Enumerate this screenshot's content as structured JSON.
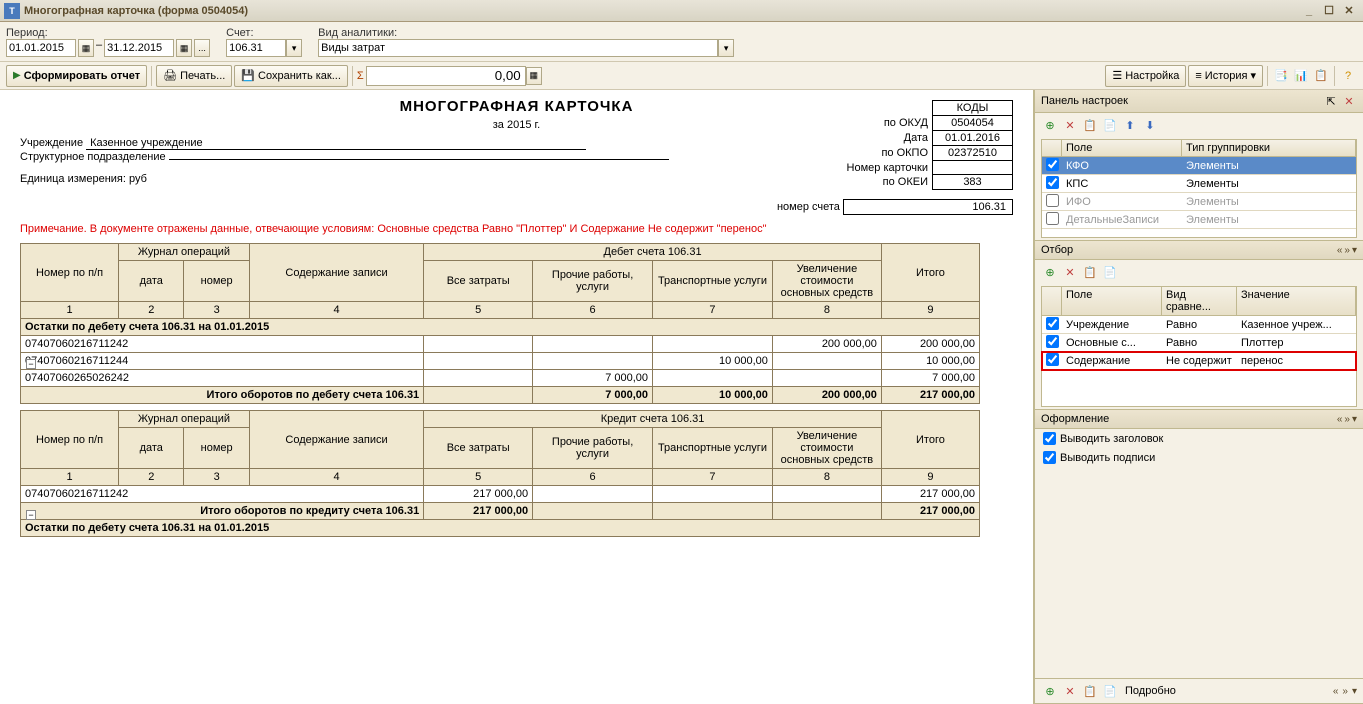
{
  "window": {
    "title": "Многографная карточка (форма 0504054)"
  },
  "toolbar1": {
    "period_label": "Период:",
    "date_from": "01.01.2015",
    "date_to": "31.12.2015",
    "account_label": "Счет:",
    "account": "106.31",
    "analytic_type_label": "Вид аналитики:",
    "analytic_type": "Виды затрат"
  },
  "toolbar2": {
    "form_report": "Сформировать отчет",
    "print": "Печать...",
    "save_as": "Сохранить как...",
    "sum_value": "0,00",
    "settings": "Настройка",
    "history": "История"
  },
  "report": {
    "title": "МНОГОГРАФНАЯ КАРТОЧКА",
    "year": "за 2015 г.",
    "codes_label": "КОДЫ",
    "okud_label": "по  ОКУД",
    "okud": "0504054",
    "date_label": "Дата",
    "date": "01.01.2016",
    "okpo_label": "по ОКПО",
    "okpo": "02372510",
    "institution_label": "Учреждение",
    "institution": "Казенное учреждение",
    "subdivision_label": "Структурное подразделение",
    "subdivision": "",
    "card_num_label": "Номер карточки",
    "card_num": "",
    "unit_label": "Единица измерения: руб",
    "okei_label": "по ОКЕИ",
    "okei": "383",
    "account_num_label": "номер счета",
    "account_num": "106.31",
    "note": "Примечание. В документе отражены данные, отвечающие условиям: Основные средства Равно \"Плоттер\" И Содержание Не содержит \"перенос\"",
    "headers": {
      "row_num": "Номер по п/п",
      "journal": "Журнал операций",
      "date": "дата",
      "number": "номер",
      "content": "Содержание записи",
      "debit": "Дебет счета 106.31",
      "credit": "Кредит счета 106.31",
      "all_costs": "Все затраты",
      "other_services": "Прочие работы, услуги",
      "transport": "Транспортные услуги",
      "increase_assets": "Увеличение стоимости основных средств",
      "total": "Итого",
      "c1": "1",
      "c2": "2",
      "c3": "3",
      "c4": "4",
      "c5": "5",
      "c6": "6",
      "c7": "7",
      "c8": "8",
      "c9": "9"
    },
    "debit_section": {
      "opening": "Остатки по дебету счета 106.31 на 01.01.2015",
      "rows": [
        {
          "code": "07407060216711242",
          "c5": "",
          "c6": "",
          "c7": "",
          "c8": "200 000,00",
          "c9": "200 000,00"
        },
        {
          "code": "07407060216711244",
          "c5": "",
          "c6": "",
          "c7": "10 000,00",
          "c8": "",
          "c9": "10 000,00"
        },
        {
          "code": "07407060265026242",
          "c5": "",
          "c6": "7 000,00",
          "c7": "",
          "c8": "",
          "c9": "7 000,00"
        }
      ],
      "total_label": "Итого оборотов по дебету счета 106.31",
      "totals": {
        "c5": "",
        "c6": "7 000,00",
        "c7": "10 000,00",
        "c8": "200 000,00",
        "c9": "217 000,00"
      }
    },
    "credit_section": {
      "rows": [
        {
          "code": "07407060216711242",
          "c5": "217 000,00",
          "c6": "",
          "c7": "",
          "c8": "",
          "c9": "217 000,00"
        }
      ],
      "total_label": "Итого оборотов по кредиту счета 106.31",
      "totals": {
        "c5": "217 000,00",
        "c6": "",
        "c7": "",
        "c8": "",
        "c9": "217 000,00"
      },
      "closing": "Остатки по дебету счета 106.31 на 01.01.2015"
    }
  },
  "panel": {
    "title": "Панель настроек",
    "grouping": {
      "col_field": "Поле",
      "col_grouptype": "Тип группировки",
      "rows": [
        {
          "checked": true,
          "field": "КФО",
          "type": "Элементы",
          "selected": true
        },
        {
          "checked": true,
          "field": "КПС",
          "type": "Элементы"
        },
        {
          "checked": false,
          "field": "ИФО",
          "type": "Элементы",
          "disabled": true
        },
        {
          "checked": false,
          "field": "ДетальныеЗаписи",
          "type": "Элементы",
          "disabled": true
        }
      ]
    },
    "filter": {
      "title": "Отбор",
      "col_field": "Поле",
      "col_compare": "Вид сравне...",
      "col_value": "Значение",
      "rows": [
        {
          "checked": true,
          "field": "Учреждение",
          "compare": "Равно",
          "value": "Казенное учреж..."
        },
        {
          "checked": true,
          "field": "Основные с...",
          "compare": "Равно",
          "value": "Плоттер"
        },
        {
          "checked": true,
          "field": "Содержание",
          "compare": "Не содержит",
          "value": "перенос",
          "highlighted": true
        }
      ]
    },
    "appearance": {
      "title": "Оформление",
      "show_header": "Выводить заголовок",
      "show_signatures": "Выводить подписи",
      "detailed": "Подробно"
    }
  }
}
